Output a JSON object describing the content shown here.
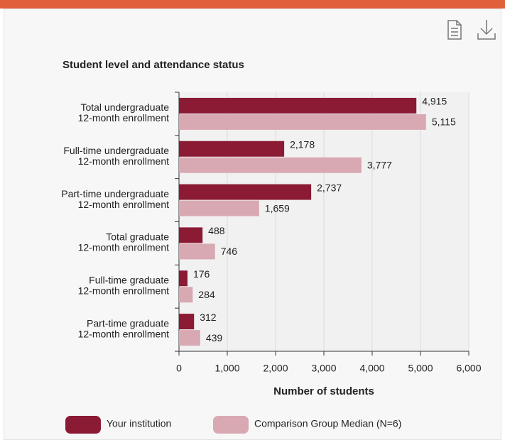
{
  "chart_data": {
    "type": "hbar",
    "title": "Student level and attendance status",
    "xlabel": "Number of students",
    "categories": [
      [
        "Total undergraduate",
        "12-month enrollment"
      ],
      [
        "Full-time undergraduate",
        "12-month enrollment"
      ],
      [
        "Part-time undergraduate",
        "12-month enrollment"
      ],
      [
        "Total graduate",
        "12-month enrollment"
      ],
      [
        "Full-time graduate",
        "12-month enrollment"
      ],
      [
        "Part-time graduate",
        "12-month enrollment"
      ]
    ],
    "series": [
      {
        "name": "Your institution",
        "color": "#8b1a35",
        "values": [
          4915,
          2178,
          2737,
          488,
          176,
          312
        ],
        "value_labels": [
          "4,915",
          "2,178",
          "2,737",
          "488",
          "176",
          "312"
        ]
      },
      {
        "name": "Comparison Group Median (N=6)",
        "color": "#d9a9b3",
        "values": [
          5115,
          3777,
          1659,
          746,
          284,
          439
        ],
        "value_labels": [
          "5,115",
          "3,777",
          "1,659",
          "746",
          "284",
          "439"
        ]
      }
    ],
    "xlim": [
      0,
      6000
    ],
    "xticks": [
      0,
      {
        "value": 1000,
        "label": "1,000"
      },
      {
        "value": 2000,
        "label": "2,000"
      },
      {
        "value": 3000,
        "label": "3,000"
      },
      {
        "value": 4000,
        "label": "4,000"
      },
      {
        "value": 5000,
        "label": "5,000"
      },
      {
        "value": 6000,
        "label": "6,000"
      }
    ],
    "grid": true,
    "legend": "bottom"
  }
}
